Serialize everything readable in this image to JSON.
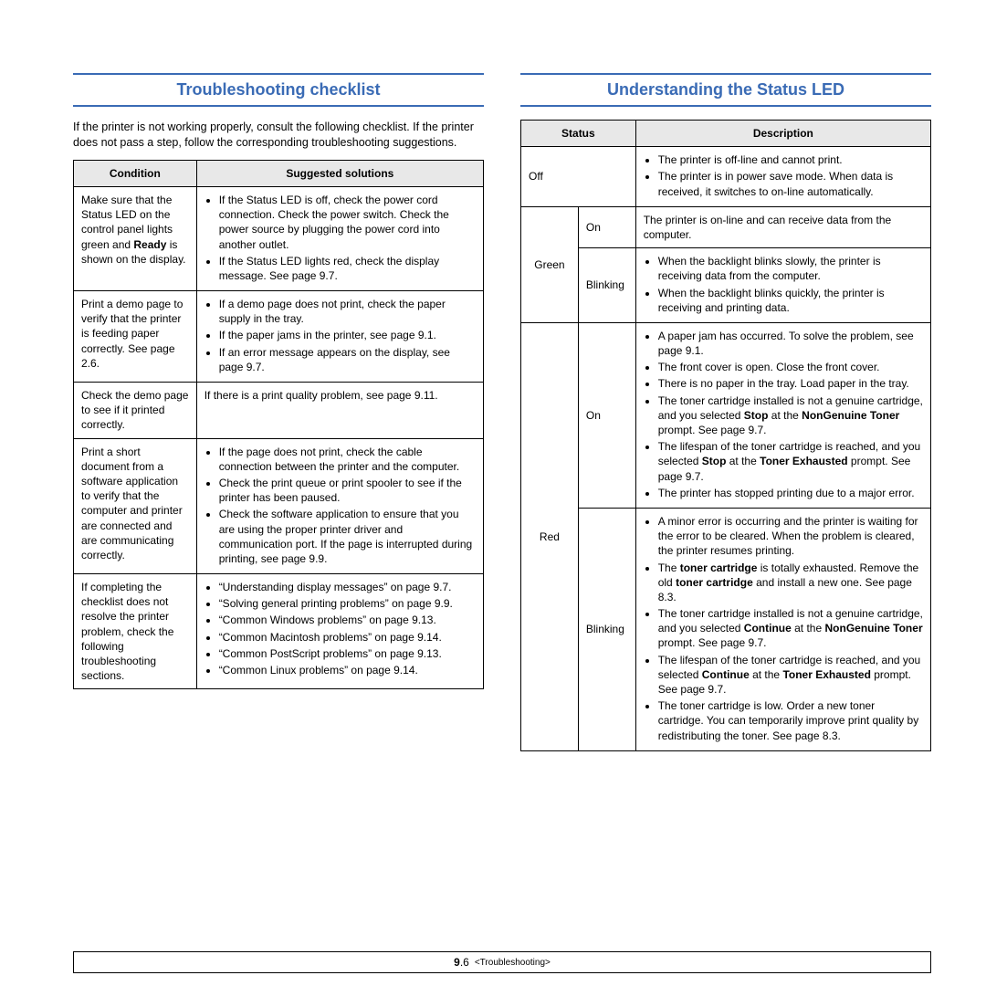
{
  "left": {
    "title": "Troubleshooting checklist",
    "intro": "If the printer is not working properly, consult the following checklist. If the printer does not pass a step, follow the corresponding troubleshooting suggestions.",
    "headers": [
      "Condition",
      "Suggested solutions"
    ],
    "rows": [
      {
        "cond_html": "Make sure that the Status LED on the control panel lights green and <b>Ready</b> is shown on the display.",
        "sol_html": "<ul><li>If the Status LED is off, check the power cord connection. Check the power switch. Check the power source by plugging the power cord into another outlet.</li><li>If the Status LED lights red, check the display message. See page 9.7.</li></ul>"
      },
      {
        "cond_html": "Print a demo page to verify that the printer is feeding paper correctly. See page 2.6.",
        "sol_html": "<ul><li>If a demo page does not print, check the paper supply in the tray.</li><li>If the paper jams in the printer, see page 9.1.</li><li>If an error message appears on the display, see page 9.7.</li></ul>"
      },
      {
        "cond_html": "Check the demo page to see if it printed correctly.",
        "sol_html": "If there is a print quality problem, see page 9.11."
      },
      {
        "cond_html": "Print a short document from a software application to verify that the computer and printer are connected and are communicating correctly.",
        "sol_html": "<ul><li>If the page does not print, check the cable connection between the printer and the computer.</li><li>Check the print queue or print spooler to see if the printer has been paused.</li><li>Check the software application to ensure that you are using the proper printer driver and communication port. If the page is interrupted during printing, see page 9.9.</li></ul>"
      },
      {
        "cond_html": "If completing the checklist does not resolve the printer problem, check the following troubleshooting sections.",
        "sol_html": "<ul><li>“Understanding display messages” on page 9.7.</li><li>“Solving general printing problems” on page 9.9.</li><li>“Common Windows problems” on page 9.13.</li><li>“Common Macintosh problems” on page 9.14.</li><li>“Common PostScript problems” on page 9.13.</li><li>“Common Linux problems” on page 9.14.</li></ul>"
      }
    ]
  },
  "right": {
    "title": "Understanding the Status LED",
    "headers": [
      "Status",
      "Description"
    ],
    "rows": [
      {
        "statusA": "Off",
        "statusA_colspan": 2,
        "desc_html": "<ul><li>The printer is off-line and cannot print.</li><li>The printer is in power save mode. When data is received, it switches to on-line automatically.</li></ul>"
      },
      {
        "statusA": "Green",
        "statusA_rowspan": 2,
        "statusB": "On",
        "desc_html": "The printer is on-line and can receive data from the computer."
      },
      {
        "statusB": "Blinking",
        "desc_html": "<ul><li>When the backlight blinks slowly, the printer is receiving data from the computer.</li><li>When the backlight blinks quickly, the printer is receiving and printing data.</li></ul>"
      },
      {
        "statusA": "Red",
        "statusA_rowspan": 2,
        "statusB": "On",
        "desc_html": "<ul><li>A paper jam has occurred. To solve the problem, see page 9.1.</li><li>The front cover is open. Close the front cover.</li><li>There is no paper in the tray. Load paper in the tray.</li><li>The toner cartridge installed is not a genuine cartridge, and you selected <b>Stop</b> at the <b>NonGenuine Toner</b> prompt. See  page 9.7.</li><li>The lifespan of the toner cartridge is reached, and you selected <b>Stop</b> at the <b>Toner Exhausted</b> prompt. See  page 9.7.</li><li>The printer has stopped printing due to a major error.</li></ul>"
      },
      {
        "statusB": "Blinking",
        "desc_html": "<ul><li>A minor error is occurring and the printer is waiting for the error to be cleared. When the problem is cleared, the printer resumes printing.</li><li>The <b>toner cartridge</b> is totally exhausted. Remove the old <b>toner cartridge</b> and install a new one. See page 8.3.</li><li>The toner cartridge installed is not a genuine cartridge, and you selected <b>Continue</b> at the <b>NonGenuine Toner</b> prompt. See  page 9.7.</li><li>The lifespan of the toner cartridge is reached, and you selected <b>Continue</b> at the <b>Toner Exhausted</b> prompt. See  page 9.7.</li><li>The toner cartridge is low. Order a new toner cartridge. You can temporarily improve print quality by redistributing the toner. See page 8.3.</li></ul>"
      }
    ]
  },
  "footer": {
    "page_num": "9.6",
    "section": "<Troubleshooting>"
  }
}
